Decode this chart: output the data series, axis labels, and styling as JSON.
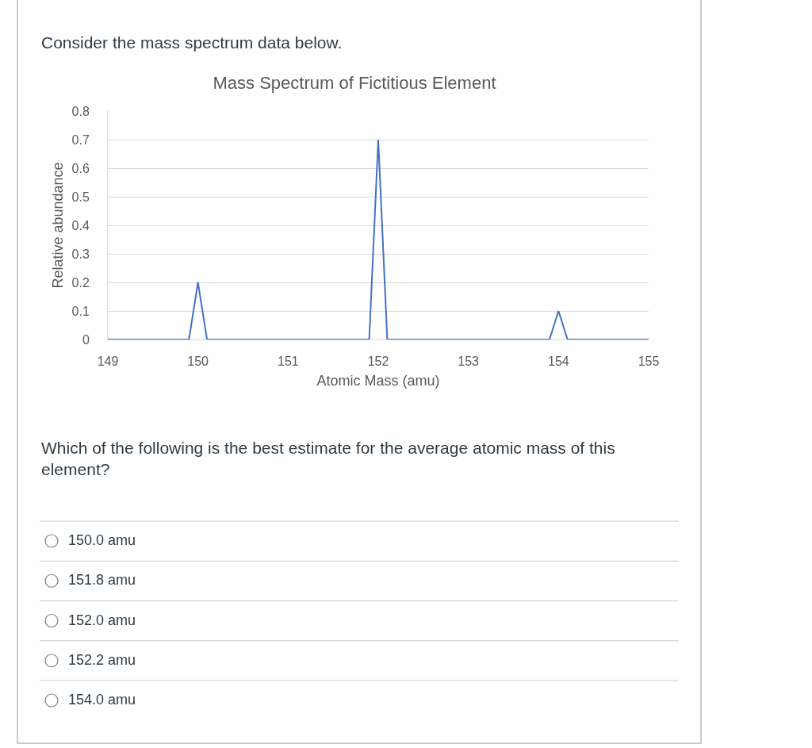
{
  "chart_data": {
    "type": "line",
    "title": "Mass Spectrum of Fictitious Element",
    "xlabel": "Atomic Mass (amu)",
    "ylabel": "Relative abundance",
    "x": [
      149,
      149.9,
      150,
      150.1,
      151.9,
      152,
      152.1,
      153.9,
      154,
      154.1,
      155
    ],
    "series": [
      {
        "color": "#4472c4",
        "values": [
          0,
          0,
          0.2,
          0,
          0,
          0.7,
          0,
          0,
          0.1,
          0,
          0
        ]
      }
    ],
    "xlim": [
      149,
      155
    ],
    "xticks": [
      149,
      150,
      151,
      152,
      153,
      154,
      155
    ],
    "ylim": [
      0,
      0.8
    ],
    "yticks": [
      0,
      0.1,
      0.2,
      0.3,
      0.4,
      0.5,
      0.6,
      0.7,
      0.8
    ],
    "grid": "y",
    "line_style": "solid",
    "annotations": [
      "Consider the mass spectrum data below.",
      "Which of the following is the best estimate for the average atomic mass of this\nelement?",
      "150.0 amu",
      "151.8 amu",
      "152.0 amu",
      "152.2 amu",
      "154.0 amu"
    ]
  }
}
